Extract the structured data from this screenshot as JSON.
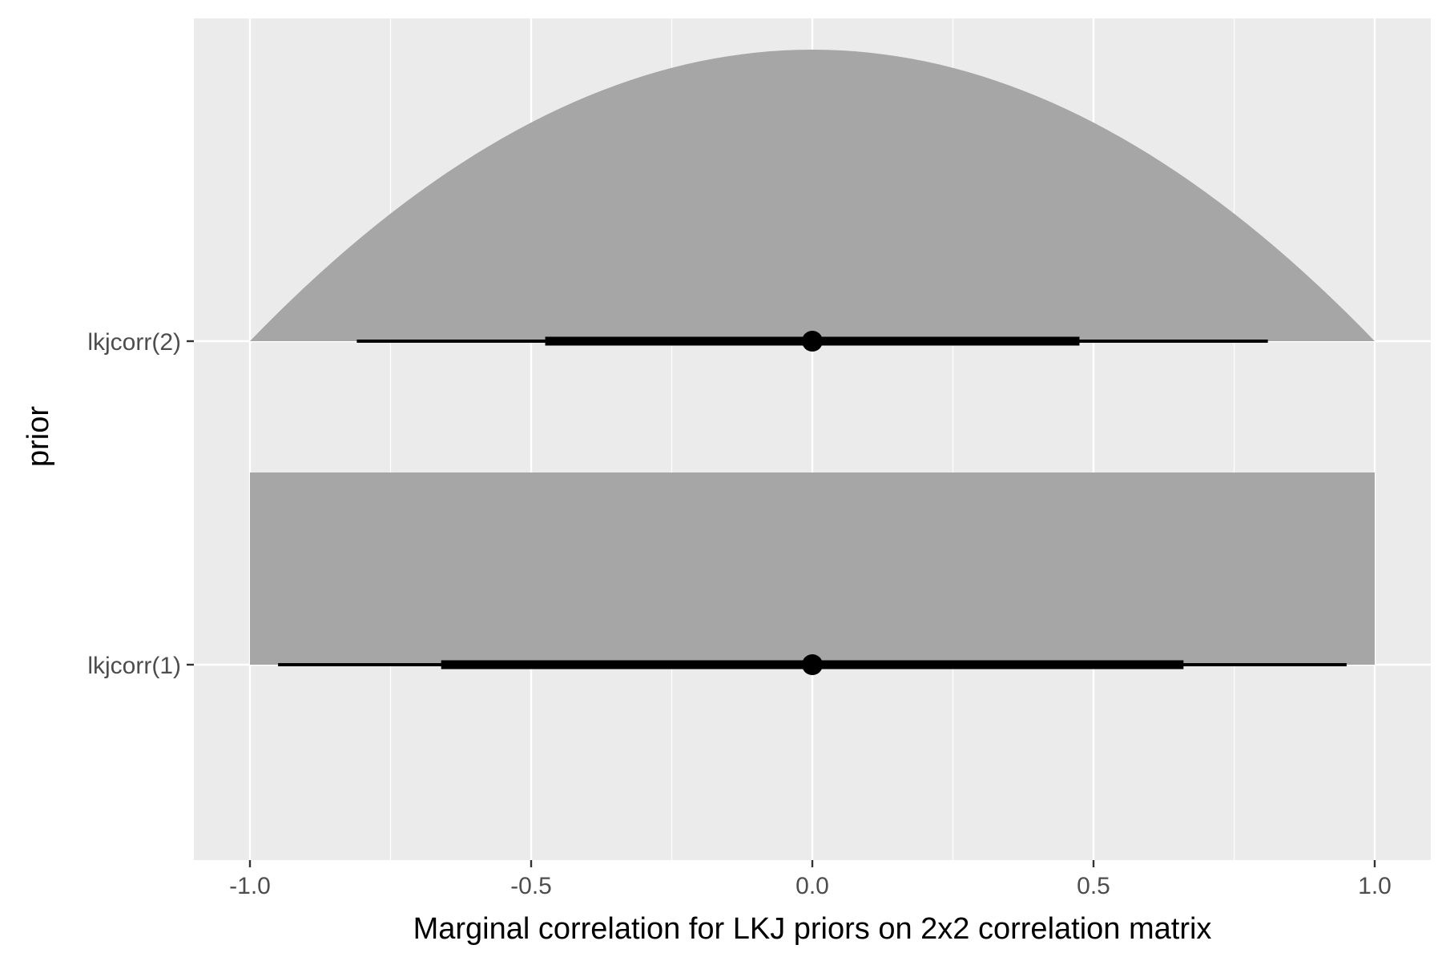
{
  "chart_data": {
    "type": "halfeye",
    "title": "",
    "xlabel": "Marginal correlation for LKJ priors on 2x2 correlation matrix",
    "ylabel": "prior",
    "xlim": [
      -1.1,
      1.1
    ],
    "x_ticks": [
      -1.0,
      -0.5,
      0.0,
      0.5,
      1.0
    ],
    "x_tick_labels": [
      "-1.0",
      "-0.5",
      "0.0",
      "0.5",
      "1.0"
    ],
    "categories": [
      "lkjcorr(1)",
      "lkjcorr(2)"
    ],
    "series": [
      {
        "category": "lkjcorr(1)",
        "distribution": "uniform",
        "support": [
          -1,
          1
        ],
        "point": 0.0,
        "interval_66": [
          -0.66,
          0.66
        ],
        "interval_95": [
          -0.95,
          0.95
        ]
      },
      {
        "category": "lkjcorr(2)",
        "distribution": "parabolic",
        "support": [
          -1,
          1
        ],
        "point": 0.0,
        "interval_66": [
          -0.475,
          0.475
        ],
        "interval_95": [
          -0.81,
          0.81
        ]
      }
    ],
    "grid": true,
    "legend": "none",
    "colors": {
      "panel": "#ebebeb",
      "grid": "#ffffff",
      "density": "#a6a6a6",
      "interval": "#000000"
    }
  }
}
